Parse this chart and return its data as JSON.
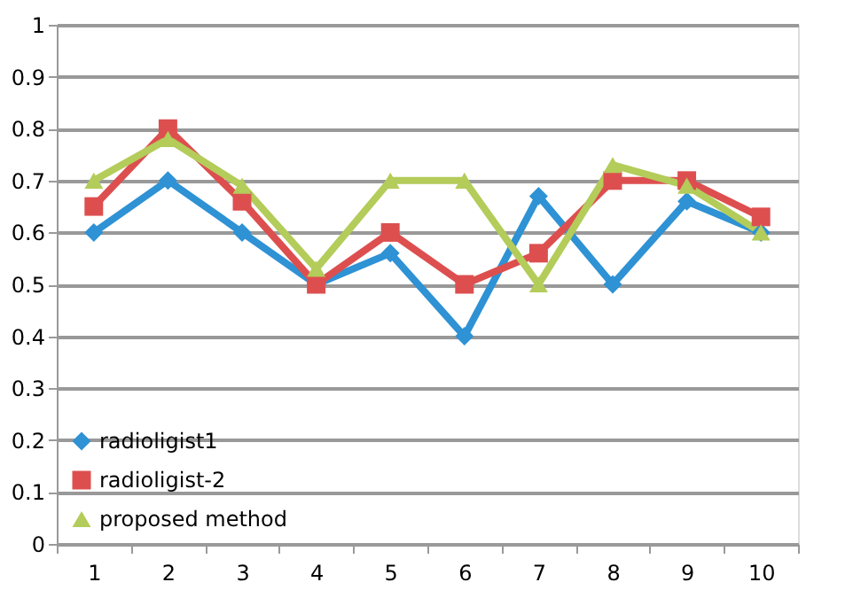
{
  "chart_data": {
    "type": "line",
    "categories": [
      "1",
      "2",
      "3",
      "4",
      "5",
      "6",
      "7",
      "8",
      "9",
      "10"
    ],
    "series": [
      {
        "name": "radioligist1",
        "color": "#2e92d4",
        "marker": "diamond",
        "values": [
          0.6,
          0.7,
          0.6,
          0.5,
          0.56,
          0.4,
          0.67,
          0.5,
          0.66,
          0.6
        ]
      },
      {
        "name": "radioligist-2",
        "color": "#dd4f4f",
        "marker": "square",
        "values": [
          0.65,
          0.8,
          0.66,
          0.5,
          0.6,
          0.5,
          0.56,
          0.7,
          0.7,
          0.63
        ]
      },
      {
        "name": "proposed method",
        "color": "#b3cc5a",
        "marker": "triangle",
        "values": [
          0.7,
          0.78,
          0.69,
          0.53,
          0.7,
          0.7,
          0.5,
          0.73,
          0.69,
          0.6
        ]
      }
    ],
    "ylim": [
      0,
      1
    ],
    "yticks": [
      0,
      0.1,
      0.2,
      0.3,
      0.4,
      0.5,
      0.6,
      0.7,
      0.8,
      0.9,
      1
    ],
    "grid": "y",
    "legend": "bottom left",
    "line_style": "solid"
  }
}
